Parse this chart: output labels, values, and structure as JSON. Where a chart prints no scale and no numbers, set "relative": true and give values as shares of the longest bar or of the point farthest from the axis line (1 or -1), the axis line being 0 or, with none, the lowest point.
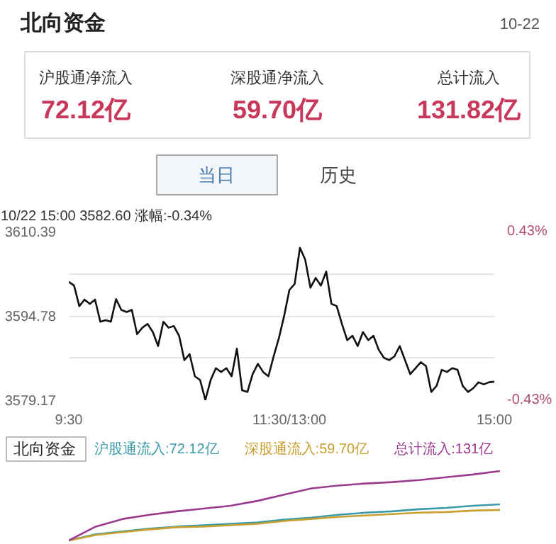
{
  "chart_data": [
    {
      "type": "other",
      "title": "北向资金",
      "subtitle": "10-22",
      "annotations": [
        "沪股通净流入",
        "72.12亿",
        "深股通净流入",
        "59.70亿",
        "总计流入",
        "131.82亿",
        "当日",
        "历史"
      ]
    },
    {
      "type": "line",
      "title": "10/22 15:00 3582.60 涨幅:-0.34%",
      "categories": [
        "9:30",
        null,
        null,
        null,
        null,
        null,
        null,
        null,
        null,
        null,
        null,
        null,
        null,
        null,
        null,
        null,
        null,
        null,
        null,
        null,
        null,
        null,
        null,
        null,
        null,
        null,
        null,
        null,
        null,
        null,
        null,
        null,
        null,
        null,
        null,
        null,
        null,
        null,
        null,
        null,
        null,
        null,
        "11:30/13:00",
        null,
        null,
        null,
        null,
        null,
        null,
        null,
        null,
        null,
        null,
        null,
        null,
        null,
        null,
        null,
        null,
        null,
        null,
        null,
        null,
        null,
        null,
        null,
        null,
        null,
        null,
        null,
        null,
        null,
        null,
        null,
        null,
        null,
        null,
        null,
        null,
        null,
        null,
        "15:00"
      ],
      "ylim": [
        3579.17,
        3610.39
      ],
      "yticks": [
        3610.39,
        {
          "value": 3602.585,
          "label": null
        },
        3594.78,
        {
          "value": 3586.975,
          "label": null
        },
        3579.17
      ],
      "y2lim": [
        -0.43,
        0.43
      ],
      "y2ticks": [
        {
          "value": 0.43,
          "label": "0.43%"
        },
        {
          "value": -0.43,
          "label": "-0.43%"
        }
      ],
      "grid": "y",
      "series": [
        {
          "color": "#111111",
          "values": [
            3601.1,
            3600.4,
            3596.6,
            3597.8,
            3597.0,
            3597.8,
            3593.7,
            3594.0,
            3593.7,
            3597.9,
            3595.9,
            3595.5,
            3595.9,
            3591.4,
            3592.6,
            3593.3,
            3591.8,
            3589.2,
            3593.7,
            3592.6,
            3592.9,
            3591.1,
            3586.6,
            3587.7,
            3583.6,
            3582.9,
            3579.2,
            3582.9,
            3585.1,
            3584.4,
            3585.1,
            3583.6,
            3588.7,
            3581.0,
            3580.7,
            3584.0,
            3585.9,
            3584.4,
            3583.6,
            3587.3,
            3590.7,
            3594.8,
            3599.6,
            3600.7,
            3607.4,
            3605.2,
            3600.0,
            3601.8,
            3600.4,
            3603.0,
            3597.0,
            3596.6,
            3593.3,
            3590.3,
            3591.1,
            3589.2,
            3591.8,
            3590.3,
            3591.1,
            3588.5,
            3587.0,
            3586.6,
            3587.3,
            3589.2,
            3586.6,
            3584.0,
            3585.1,
            3586.2,
            3585.5,
            3580.7,
            3581.8,
            3584.8,
            3584.4,
            3585.1,
            3584.8,
            3581.8,
            3580.7,
            3581.4,
            3582.5,
            3582.1,
            3582.5,
            3582.6
          ]
        }
      ]
    },
    {
      "type": "line",
      "relative": true,
      "categories": [
        null,
        null,
        null,
        null,
        null,
        null,
        null,
        null,
        null,
        null,
        null,
        null,
        null,
        null,
        null,
        null,
        null
      ],
      "legend": "top",
      "legend_title": "北向资金",
      "series": [
        {
          "name": "沪股通流入:72.12亿",
          "color": "#3a9aa8",
          "values": [
            0,
            0.09,
            0.13,
            0.17,
            0.2,
            0.22,
            0.24,
            0.26,
            0.3,
            0.33,
            0.37,
            0.4,
            0.42,
            0.45,
            0.47,
            0.5,
            0.52
          ]
        },
        {
          "name": "深股通流入:59.70亿",
          "color": "#c8a030",
          "values": [
            0,
            0.08,
            0.12,
            0.16,
            0.19,
            0.2,
            0.22,
            0.24,
            0.28,
            0.31,
            0.34,
            0.36,
            0.38,
            0.4,
            0.41,
            0.43,
            0.44
          ]
        },
        {
          "name": "总计流入:131亿",
          "color": "#9b3a8e",
          "values": [
            0,
            0.2,
            0.31,
            0.37,
            0.42,
            0.46,
            0.5,
            0.57,
            0.66,
            0.75,
            0.79,
            0.82,
            0.84,
            0.87,
            0.91,
            0.95,
            1
          ]
        }
      ]
    }
  ]
}
